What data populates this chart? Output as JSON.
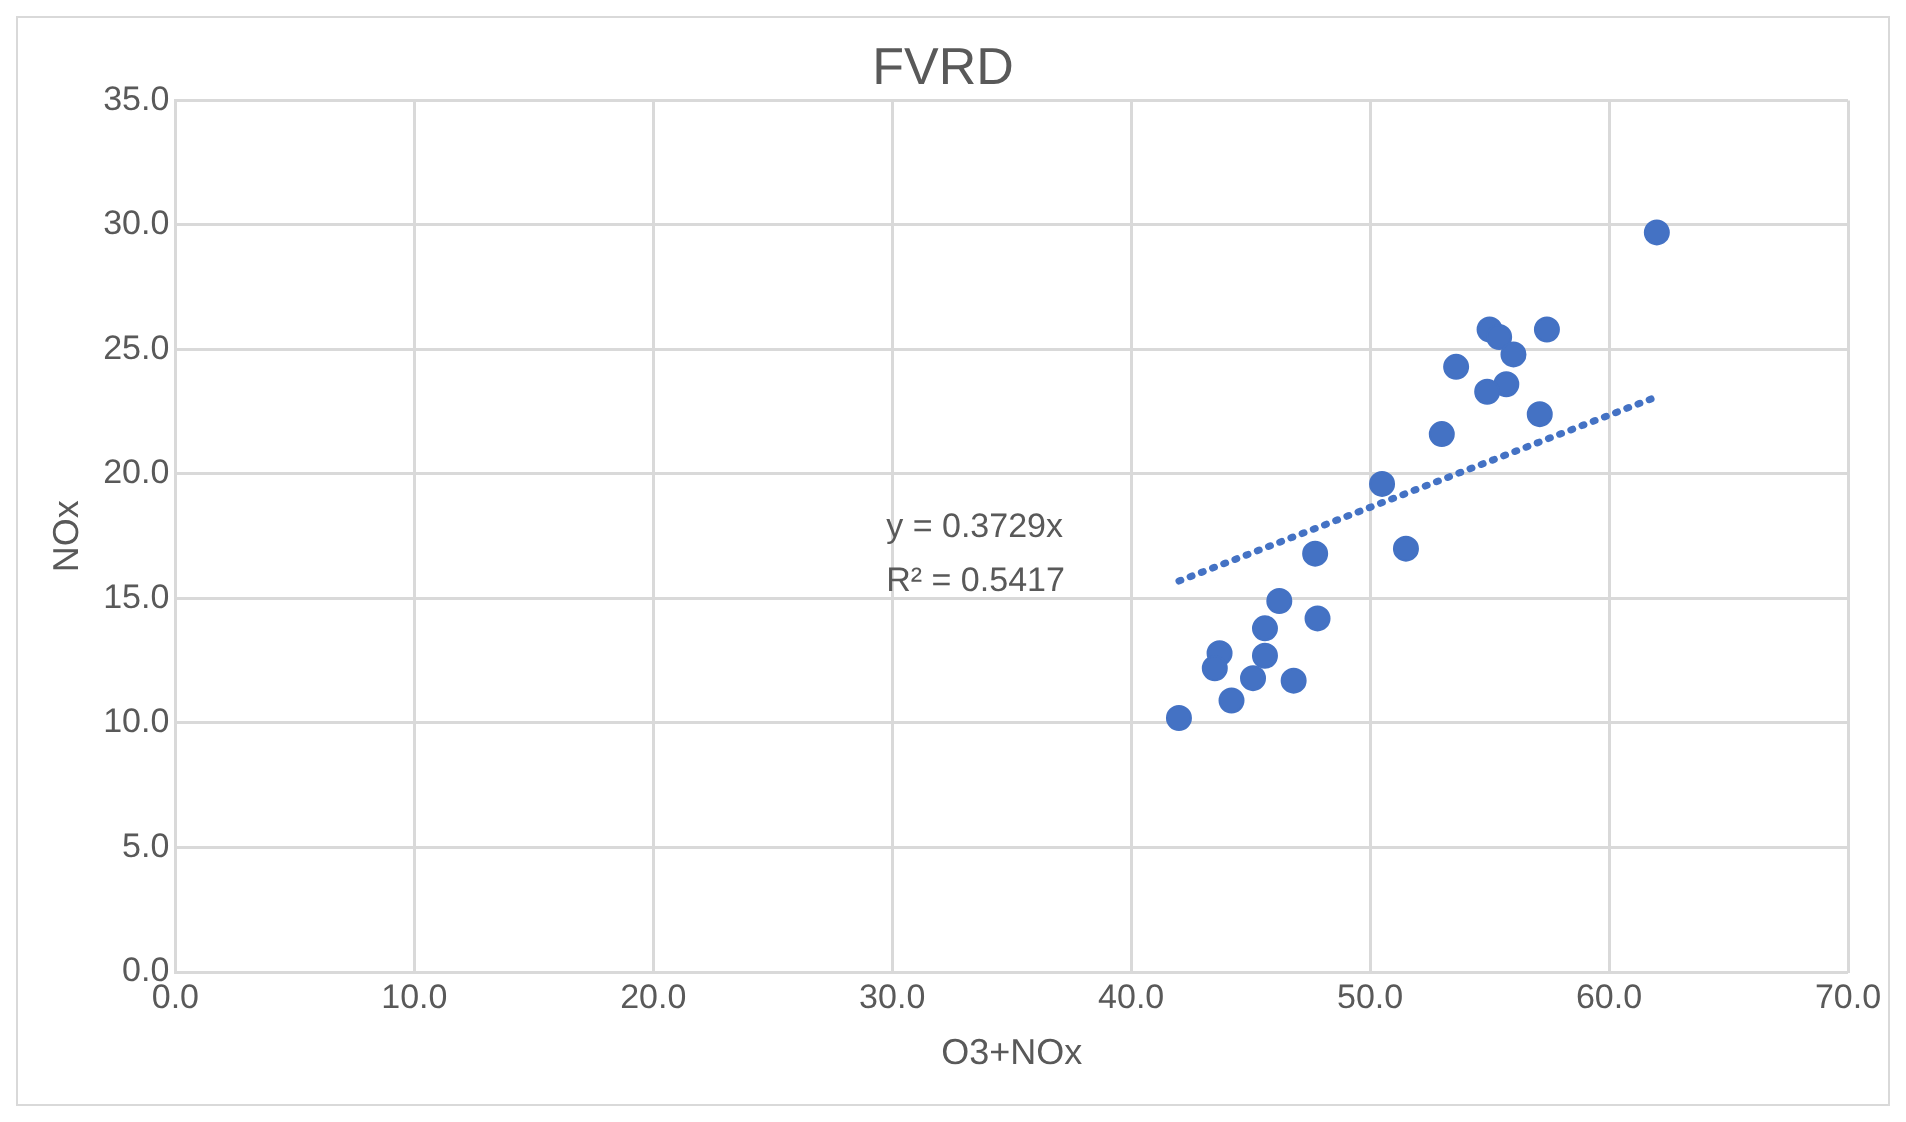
{
  "chart_data": {
    "type": "scatter",
    "title": "FVRD",
    "xlabel": "O3+NOx",
    "ylabel": "NOx",
    "xlim": [
      0,
      70
    ],
    "xticks": [
      {
        "value": 0,
        "label": "0.0"
      },
      {
        "value": 10,
        "label": "10.0"
      },
      {
        "value": 20,
        "label": "20.0"
      },
      {
        "value": 30,
        "label": "30.0"
      },
      {
        "value": 40,
        "label": "40.0"
      },
      {
        "value": 50,
        "label": "50.0"
      },
      {
        "value": 60,
        "label": "60.0"
      },
      {
        "value": 70,
        "label": "70.0"
      }
    ],
    "ylim": [
      0,
      35
    ],
    "yticks": [
      {
        "value": 0,
        "label": "0.0"
      },
      {
        "value": 5,
        "label": "5.0"
      },
      {
        "value": 10,
        "label": "10.0"
      },
      {
        "value": 15,
        "label": "15.0"
      },
      {
        "value": 20,
        "label": "20.0"
      },
      {
        "value": 25,
        "label": "25.0"
      },
      {
        "value": 30,
        "label": "30.0"
      },
      {
        "value": 35,
        "label": "35.0"
      }
    ],
    "grid": true,
    "legend": false,
    "marker": "circle",
    "annotations": [
      "y = 0.3729x",
      "R² = 0.5417"
    ],
    "series": [
      {
        "color": "#4472c4",
        "x": [
          62.0,
          57.4,
          55.0,
          55.4,
          56.0,
          53.6,
          55.7,
          54.9,
          57.1,
          53.0,
          50.5,
          51.5,
          47.7,
          46.2,
          47.8,
          45.6,
          43.7,
          45.6,
          43.5,
          45.1,
          46.8,
          44.2,
          42.0
        ],
        "values": [
          29.7,
          25.8,
          25.8,
          25.5,
          24.8,
          24.3,
          23.6,
          23.3,
          22.4,
          21.6,
          19.6,
          17.0,
          16.8,
          14.9,
          14.2,
          13.8,
          12.8,
          12.7,
          12.2,
          11.8,
          11.7,
          10.9,
          10.2
        ]
      },
      {
        "type": "line",
        "color": "#4472c4",
        "line_style": "dotted",
        "marker": "none",
        "x": [
          42.0,
          62.0
        ],
        "values": [
          15.7,
          23.1
        ]
      }
    ]
  }
}
